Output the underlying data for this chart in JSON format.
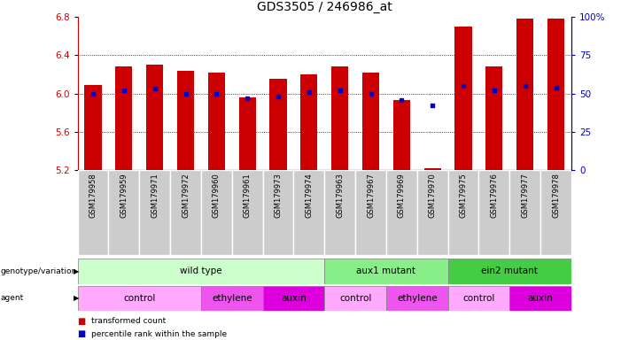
{
  "title": "GDS3505 / 246986_at",
  "samples": [
    "GSM179958",
    "GSM179959",
    "GSM179971",
    "GSM179972",
    "GSM179960",
    "GSM179961",
    "GSM179973",
    "GSM179974",
    "GSM179963",
    "GSM179967",
    "GSM179969",
    "GSM179970",
    "GSM179975",
    "GSM179976",
    "GSM179977",
    "GSM179978"
  ],
  "bar_values": [
    6.09,
    6.28,
    6.3,
    6.24,
    6.22,
    5.96,
    6.15,
    6.2,
    6.28,
    6.22,
    5.93,
    5.22,
    6.7,
    6.28,
    6.78,
    6.78
  ],
  "percentile_values": [
    50,
    52,
    53,
    50,
    50,
    47,
    48,
    51,
    52,
    50,
    46,
    42,
    55,
    52,
    55,
    54
  ],
  "ylim_left": [
    5.2,
    6.8
  ],
  "ylim_right": [
    0,
    100
  ],
  "yticks_left": [
    5.2,
    5.6,
    6.0,
    6.4,
    6.8
  ],
  "yticks_right": [
    0,
    25,
    50,
    75,
    100
  ],
  "grid_values": [
    5.6,
    6.0,
    6.4
  ],
  "bar_color": "#CC0000",
  "dot_color": "#0000CC",
  "bar_bottom": 5.2,
  "genotype_groups": [
    {
      "label": "wild type",
      "start": 0,
      "end": 8,
      "color": "#CCFFCC"
    },
    {
      "label": "aux1 mutant",
      "start": 8,
      "end": 12,
      "color": "#88EE88"
    },
    {
      "label": "ein2 mutant",
      "start": 12,
      "end": 16,
      "color": "#44CC44"
    }
  ],
  "agent_groups": [
    {
      "label": "control",
      "start": 0,
      "end": 4,
      "color": "#FFAAFF"
    },
    {
      "label": "ethylene",
      "start": 4,
      "end": 6,
      "color": "#EE55EE"
    },
    {
      "label": "auxin",
      "start": 6,
      "end": 8,
      "color": "#DD00DD"
    },
    {
      "label": "control",
      "start": 8,
      "end": 10,
      "color": "#FFAAFF"
    },
    {
      "label": "ethylene",
      "start": 10,
      "end": 12,
      "color": "#EE55EE"
    },
    {
      "label": "control",
      "start": 12,
      "end": 14,
      "color": "#FFAAFF"
    },
    {
      "label": "auxin",
      "start": 14,
      "end": 16,
      "color": "#DD00DD"
    }
  ],
  "legend_items": [
    {
      "label": "transformed count",
      "color": "#CC0000"
    },
    {
      "label": "percentile rank within the sample",
      "color": "#0000CC"
    }
  ],
  "left_axis_color": "#CC0000",
  "right_axis_color": "#0000CC",
  "background_color": "#FFFFFF",
  "tick_label_fontsize": 7.5,
  "title_fontsize": 10,
  "sample_label_bg": "#CCCCCC"
}
